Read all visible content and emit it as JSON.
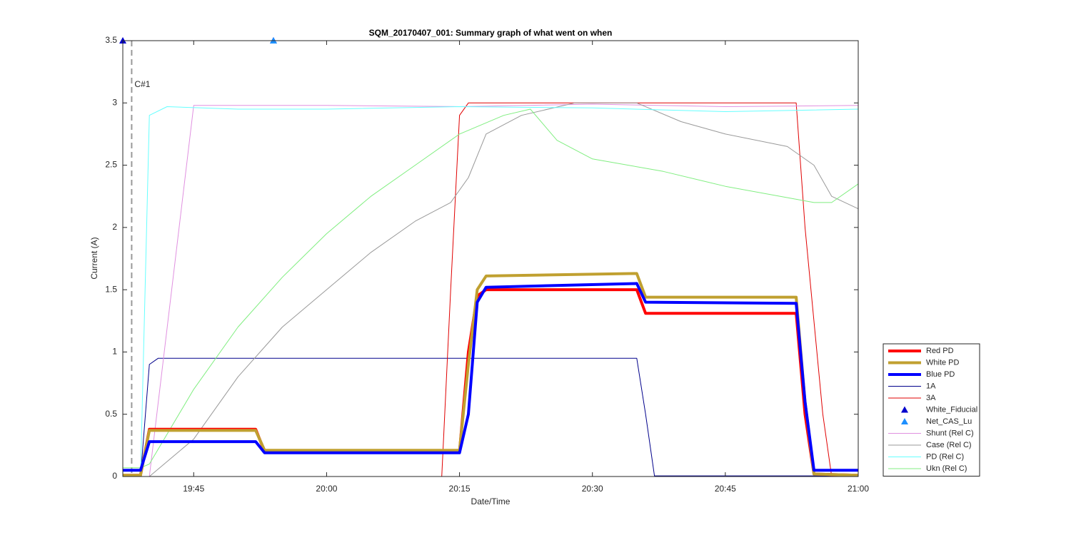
{
  "chart_data": {
    "type": "line",
    "title": "SQM_20170407_001: Summary graph of what went on when",
    "xlabel": "Date/Time",
    "ylabel": "Current (A)",
    "xlim": [
      "19:37",
      "21:00"
    ],
    "xticks": [
      "19:45",
      "20:00",
      "20:15",
      "20:30",
      "20:45",
      "21:00"
    ],
    "ylim": [
      0,
      3.5
    ],
    "yticks": [
      0,
      0.5,
      1,
      1.5,
      2,
      2.5,
      3,
      3.5
    ],
    "annotations": [
      {
        "text": "C#1",
        "x": "19:38"
      }
    ],
    "series": [
      {
        "name": "Red PD",
        "color": "#ff0000",
        "line_width": 4,
        "x": [
          "19:37",
          "19:39",
          "19:40",
          "19:52",
          "19:53",
          "20:15",
          "20:16",
          "20:17",
          "20:18",
          "20:35",
          "20:36",
          "20:53",
          "20:54",
          "20:55",
          "21:00"
        ],
        "values": [
          0.01,
          0.01,
          0.38,
          0.38,
          0.2,
          0.2,
          1.0,
          1.45,
          1.5,
          1.5,
          1.31,
          1.31,
          0.5,
          0.02,
          0.01
        ]
      },
      {
        "name": "White PD",
        "color": "#c0a030",
        "line_width": 4,
        "x": [
          "19:37",
          "19:39",
          "19:40",
          "19:52",
          "19:53",
          "20:15",
          "20:16",
          "20:17",
          "20:18",
          "20:35",
          "20:36",
          "20:53",
          "20:54",
          "20:55",
          "21:00"
        ],
        "values": [
          0.01,
          0.01,
          0.37,
          0.37,
          0.21,
          0.21,
          0.9,
          1.5,
          1.61,
          1.63,
          1.44,
          1.44,
          0.6,
          0.02,
          0.01
        ]
      },
      {
        "name": "Blue PD",
        "color": "#0000ff",
        "line_width": 4,
        "x": [
          "19:37",
          "19:39",
          "19:40",
          "19:52",
          "19:53",
          "20:15",
          "20:16",
          "20:17",
          "20:18",
          "20:35",
          "20:36",
          "20:53",
          "20:54",
          "20:55",
          "21:00"
        ],
        "values": [
          0.05,
          0.05,
          0.28,
          0.28,
          0.19,
          0.19,
          0.5,
          1.4,
          1.52,
          1.55,
          1.4,
          1.39,
          0.6,
          0.05,
          0.05
        ]
      },
      {
        "name": "1A",
        "color": "#00008b",
        "line_width": 1,
        "x": [
          "19:37",
          "19:39",
          "19:40",
          "19:41",
          "20:35",
          "20:36",
          "20:37",
          "21:00"
        ],
        "values": [
          0,
          0,
          0.9,
          0.95,
          0.95,
          0.5,
          0.005,
          0.005
        ]
      },
      {
        "name": "3A",
        "color": "#e00000",
        "line_width": 1,
        "x": [
          "19:37",
          "20:13",
          "20:14",
          "20:15",
          "20:16",
          "20:53",
          "20:54",
          "20:56",
          "20:57",
          "21:00"
        ],
        "values": [
          0,
          0,
          1.5,
          2.9,
          3.0,
          3.0,
          2.0,
          0.5,
          0,
          0
        ]
      },
      {
        "name": "White_Fiducial",
        "color": "#0000cc",
        "marker": "^",
        "x": [
          "19:37",
          "19:54"
        ],
        "values": [
          3.5,
          3.5
        ]
      },
      {
        "name": "Net_CAS_Lu",
        "color": "#1e90ff",
        "marker": "^",
        "x": [
          "19:54"
        ],
        "values": [
          3.5
        ]
      },
      {
        "name": "Shunt (Rel C)",
        "color": "#e090e0",
        "line_width": 1,
        "x": [
          "19:37",
          "19:40",
          "19:45",
          "20:00",
          "20:15",
          "20:30",
          "20:45",
          "21:00"
        ],
        "values": [
          0,
          0,
          2.98,
          2.98,
          2.97,
          2.99,
          2.97,
          2.98
        ]
      },
      {
        "name": "Case (Rel C)",
        "color": "#999999",
        "line_width": 1,
        "x": [
          "19:37",
          "19:40",
          "19:45",
          "19:50",
          "19:55",
          "20:00",
          "20:05",
          "20:10",
          "20:14",
          "20:16",
          "20:18",
          "20:22",
          "20:28",
          "20:35",
          "20:40",
          "20:45",
          "20:52",
          "20:55",
          "20:57",
          "21:00"
        ],
        "values": [
          0,
          0,
          0.3,
          0.8,
          1.2,
          1.5,
          1.8,
          2.05,
          2.2,
          2.4,
          2.75,
          2.9,
          3.0,
          3.0,
          2.85,
          2.75,
          2.65,
          2.5,
          2.25,
          2.15
        ]
      },
      {
        "name": "PD (Rel C)",
        "color": "#66ffff",
        "line_width": 1,
        "x": [
          "19:37",
          "19:39",
          "19:40",
          "19:42",
          "19:50",
          "20:00",
          "20:15",
          "20:30",
          "20:45",
          "21:00"
        ],
        "values": [
          0,
          0,
          2.9,
          2.97,
          2.95,
          2.95,
          2.97,
          2.96,
          2.93,
          2.95
        ]
      },
      {
        "name": "Ukn (Rel C)",
        "color": "#80ee80",
        "line_width": 1,
        "x": [
          "19:37",
          "19:39",
          "19:40",
          "19:45",
          "19:50",
          "19:55",
          "20:00",
          "20:05",
          "20:10",
          "20:15",
          "20:20",
          "20:23",
          "20:26",
          "20:30",
          "20:38",
          "20:45",
          "20:55",
          "20:57",
          "21:00"
        ],
        "values": [
          0.07,
          0.07,
          0.1,
          0.7,
          1.2,
          1.6,
          1.95,
          2.25,
          2.5,
          2.75,
          2.9,
          2.95,
          2.7,
          2.55,
          2.45,
          2.33,
          2.2,
          2.2,
          2.35
        ]
      }
    ]
  }
}
